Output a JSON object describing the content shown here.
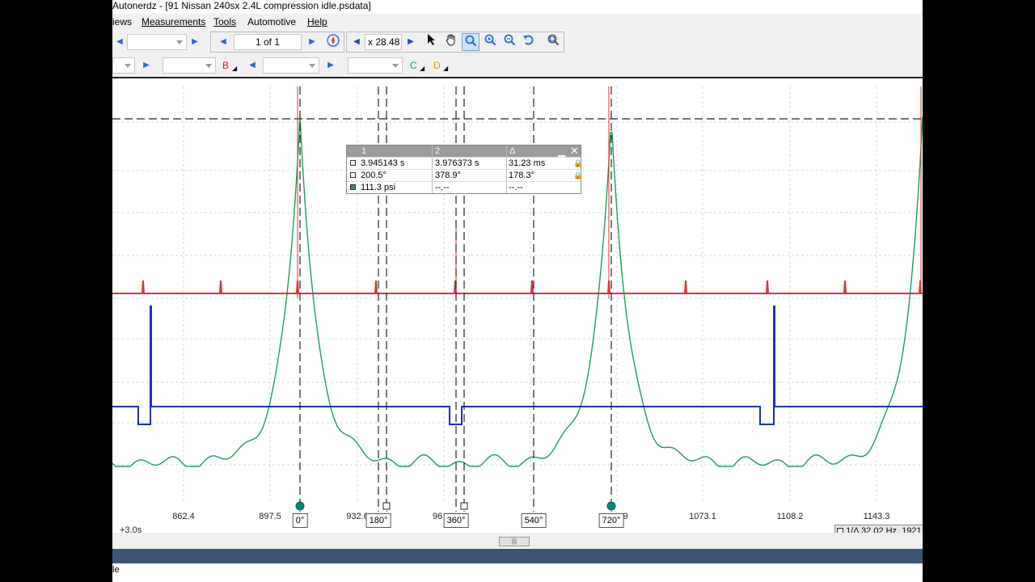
{
  "window": {
    "title": "Autonerdz - [91 Nissan 240sx 2.4L compression idle.psdata]"
  },
  "menu": {
    "items": [
      {
        "label": "iews",
        "underline": ""
      },
      {
        "label": "Measurements",
        "underline": "M"
      },
      {
        "label": "Tools",
        "underline": "T"
      },
      {
        "label": "Automotive",
        "underline": ""
      },
      {
        "label": "Help",
        "underline": "H"
      }
    ]
  },
  "toolbar": {
    "page_indicator": "1 of 1",
    "zoom_value": "x 28.48",
    "channel_b": "B",
    "channel_c": "C",
    "channel_d": "D"
  },
  "measurements": {
    "headers": [
      "1",
      "2",
      "Δ"
    ],
    "rows": [
      {
        "c1": "3.945143 s",
        "c2": "3.976373 s",
        "delta": "31.23 ms"
      },
      {
        "c1": "200.5°",
        "c2": "378.9°",
        "delta": "178.3°"
      },
      {
        "c1": "111.3 psi",
        "c2": "--.--",
        "delta": "--.--"
      }
    ]
  },
  "axis": {
    "ticks": [
      "862.4",
      "897.5",
      "932.6",
      "96",
      "1",
      ".9",
      "1073.1",
      "1108.2",
      "1143.3"
    ],
    "offset": "+3.0s"
  },
  "rulers": [
    "0°",
    "180°",
    "360°",
    "540°",
    "720°"
  ],
  "frequency": "1/Δ 32.02 Hz, 1921",
  "status": {
    "text": "le"
  },
  "colors": {
    "trace_a": "#e03030",
    "trace_b": "#1a2fc8",
    "trace_c": "#1aa055",
    "ruler_marker": "#0e8080",
    "status_band": "#3c5577"
  }
}
